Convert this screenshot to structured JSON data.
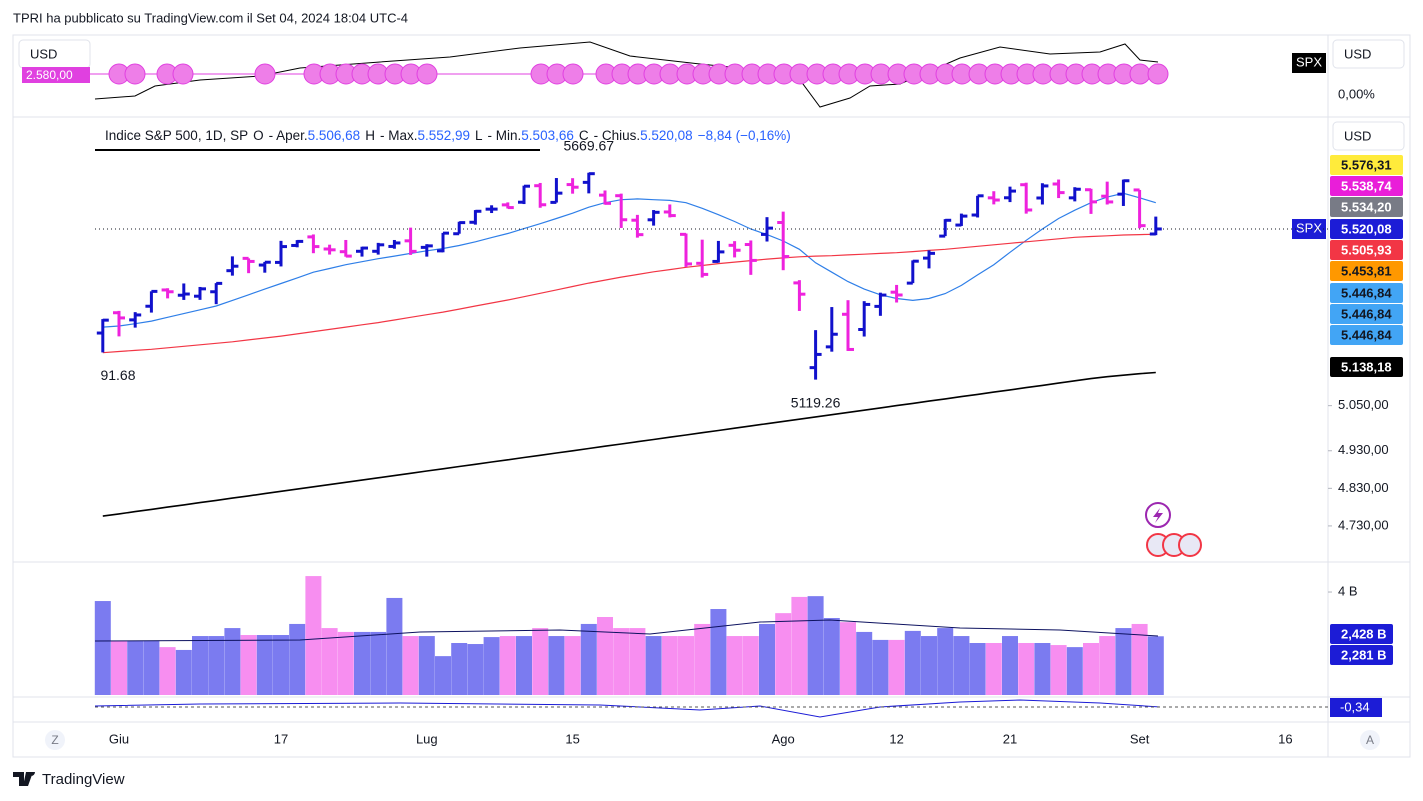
{
  "header": {
    "title": "TPRI ha pubblicato su TradingView.com il Set 04, 2024 18:04 UTC-4"
  },
  "currency": "USD",
  "symbol": "SPX",
  "top_pane": {
    "label": "2.580,00",
    "percent": "0,00%"
  },
  "legend": {
    "name": "Indice S&P 500, 1D, SP",
    "o": "O",
    "o_text": "- Aper.",
    "o_value": "5.506,68",
    "h": "H",
    "h_text": "- Max.",
    "h_value": "5.552,99",
    "l": "L",
    "l_text": "- Min.",
    "l_value": "5.503,66",
    "c": "C",
    "c_text": "- Chius.",
    "c_value": "5.520,08",
    "change": "−8,84 (−0,16%)"
  },
  "chart_data": {
    "type": "ohlc",
    "annotations": [
      {
        "text": "5669.67",
        "at": 30
      },
      {
        "text": "5119.26",
        "at": 44
      },
      {
        "text": "91.68",
        "at": 0
      }
    ],
    "categories": [
      null,
      "Giu",
      null,
      null,
      null,
      null,
      null,
      null,
      null,
      null,
      null,
      "17",
      null,
      null,
      null,
      null,
      null,
      null,
      null,
      null,
      "Lug",
      null,
      null,
      null,
      null,
      null,
      null,
      null,
      null,
      "15",
      null,
      null,
      null,
      null,
      null,
      null,
      null,
      null,
      null,
      null,
      null,
      null,
      "Ago",
      null,
      null,
      null,
      null,
      null,
      null,
      "12",
      null,
      null,
      null,
      null,
      null,
      null,
      "21",
      null,
      null,
      null,
      null,
      null,
      null,
      null,
      "Set",
      null,
      null,
      null,
      null,
      null,
      null,
      null,
      null,
      "16"
    ],
    "ohlc": {
      "open": [
        5243.2,
        5297.2,
        5278.2,
        5314.5,
        5357.8,
        5343.8,
        5341.2,
        5353.0,
        5409.1,
        5441.9,
        5424.1,
        5431.1,
        5476.2,
        5499.0,
        5466.8,
        5459.6,
        5460.7,
        5460.7,
        5473.6,
        5488.5,
        5471.1,
        5461.8,
        5507.4,
        5537.9,
        5572.8,
        5584.2,
        5591.3,
        5635.2,
        5590.8,
        5638.2,
        5644.1,
        5610.1,
        5608.6,
        5543.4,
        5544.5,
        5565.3,
        5505.8,
        5428.7,
        5433.7,
        5476.6,
        5478.7,
        5505.6,
        5537.3,
        5376.6,
        5151.1,
        5206.4,
        5293.1,
        5252.6,
        5314.1,
        5351.9,
        5376.0,
        5442.6,
        5501.1,
        5530.5,
        5557.2,
        5602.9,
        5603.1,
        5637.8,
        5602.5,
        5639.7,
        5602.9,
        5624.5,
        5607.3,
        5612.7,
        5623.9,
        5506.68,
        null,
        null,
        null,
        null,
        null,
        null,
        null,
        null
      ],
      "high": [
        5280.3,
        5302.1,
        5298.8,
        5354.2,
        5362.4,
        5375.1,
        5365.8,
        5376.0,
        5447.2,
        5441.9,
        5432.4,
        5488.5,
        5490.4,
        5505.5,
        5478.3,
        5490.8,
        5472.9,
        5483.1,
        5490.8,
        5523.6,
        5479.6,
        5509.7,
        5539.3,
        5570.3,
        5583.1,
        5590.8,
        5635.4,
        5642.5,
        5655.6,
        5655.2,
        5669.67,
        5622.5,
        5614.1,
        5557.6,
        5570.4,
        5585.3,
        5508.0,
        5491.6,
        5488.3,
        5487.7,
        5489.5,
        5551.5,
        5566.2,
        5383.9,
        5250.9,
        5312.3,
        5330.6,
        5328.0,
        5350.6,
        5371.2,
        5436.5,
        5463.2,
        5546.2,
        5561.0,
        5608.3,
        5620.5,
        5632.7,
        5643.2,
        5641.8,
        5651.6,
        5631.2,
        5627.0,
        5646.0,
        5651.4,
        5623.9,
        5552.99,
        null,
        null,
        null,
        null,
        null,
        null,
        null,
        null
      ],
      "low": [
        5191.68,
        5234.3,
        5257.6,
        5297.6,
        5335.4,
        5331.3,
        5331.5,
        5320.0,
        5395.9,
        5402.5,
        5403.8,
        5420.4,
        5471.3,
        5455.6,
        5452.0,
        5446.3,
        5446.6,
        5451.9,
        5467.5,
        5451.1,
        5446.5,
        5458.0,
        5507.4,
        5531.6,
        5562.5,
        5574.6,
        5586.4,
        5576.5,
        5590.4,
        5614.0,
        5614.8,
        5584.8,
        5522.8,
        5497.0,
        5529.0,
        5550.9,
        5419.0,
        5390.9,
        5430.7,
        5444.4,
        5398.0,
        5486.7,
        5410.4,
        5302.0,
        5119.26,
        5193.6,
        5195.5,
        5233.9,
        5289.0,
        5324.4,
        5376.0,
        5415.2,
        5501.1,
        5528.1,
        5550.7,
        5585.5,
        5591.6,
        5560.9,
        5585.2,
        5602.3,
        5593.5,
        5560.2,
        5585.2,
        5581.3,
        5522.0,
        5503.66,
        null,
        null,
        null,
        null,
        null,
        null,
        null,
        null
      ],
      "close": [
        5277.5,
        5283.4,
        5291.3,
        5354.0,
        5353.0,
        5347.0,
        5360.8,
        5375.3,
        5421.0,
        5433.7,
        5431.6,
        5473.2,
        5487.0,
        5473.2,
        5464.6,
        5447.9,
        5469.3,
        5477.9,
        5482.9,
        5460.5,
        5475.1,
        5509.0,
        5537.0,
        5567.2,
        5572.9,
        5577.0,
        5633.9,
        5584.5,
        5615.4,
        5631.2,
        5667.2,
        5588.3,
        5544.6,
        5505.0,
        5564.4,
        5555.7,
        5427.1,
        5399.2,
        5459.1,
        5463.5,
        5436.4,
        5522.3,
        5446.7,
        5346.6,
        5186.3,
        5240.0,
        5199.5,
        5319.3,
        5344.2,
        5344.4,
        5434.4,
        5455.2,
        5543.2,
        5554.3,
        5608.3,
        5597.1,
        5620.9,
        5570.6,
        5634.6,
        5616.8,
        5625.8,
        5592.2,
        5592.0,
        5648.4,
        5528.9,
        5520.08,
        null,
        null,
        null,
        null,
        null,
        null,
        null,
        null
      ]
    },
    "up_color": "#1111cc",
    "down_color": "#ee22dd",
    "lines": [
      {
        "color": "#2f7fe8",
        "values": [
          5259,
          5262,
          5268,
          5275,
          5285,
          5295,
          5305,
          5315,
          5330,
          5345,
          5360,
          5375,
          5390,
          5405,
          5415,
          5425,
          5433,
          5441,
          5448,
          5455,
          5462,
          5468,
          5476,
          5486,
          5497,
          5508,
          5521,
          5534,
          5548,
          5562,
          5578,
          5590,
          5598,
          5600,
          5598,
          5596,
          5590,
          5575,
          5558,
          5540,
          5520,
          5505,
          5488,
          5466,
          5430,
          5405,
          5380,
          5360,
          5345,
          5335,
          5330,
          5335,
          5348,
          5370,
          5398,
          5425,
          5458,
          5490,
          5520,
          5548,
          5570,
          5590,
          5605,
          5615,
          5603,
          5590,
          null,
          null,
          null,
          null,
          null,
          null,
          null,
          null
        ]
      },
      {
        "color": "#f23645",
        "values": [
          5191,
          5194,
          5197,
          5200,
          5204,
          5208,
          5212,
          5216,
          5220,
          5225,
          5230,
          5235,
          5241,
          5247,
          5253,
          5259,
          5265,
          5271,
          5278,
          5285,
          5292,
          5299,
          5307,
          5315,
          5323,
          5331,
          5340,
          5349,
          5358,
          5367,
          5376,
          5384,
          5392,
          5399,
          5406,
          5412,
          5418,
          5423,
          5428,
          5432,
          5436,
          5440,
          5443,
          5446,
          5448,
          5449,
          5451,
          5453,
          5455,
          5457,
          5460,
          5463,
          5466,
          5470,
          5474,
          5478,
          5482,
          5486,
          5490,
          5494,
          5498,
          5500,
          5502,
          5504,
          5505,
          5505.93,
          null,
          null,
          null,
          null,
          null,
          null,
          null,
          null
        ]
      },
      {
        "color": "#000000",
        "values": [
          4756,
          4762,
          4768,
          4774,
          4780,
          4786,
          4792,
          4798,
          4804,
          4810,
          4816,
          4822,
          4828,
          4834,
          4840,
          4846,
          4852,
          4858,
          4864,
          4870,
          4876,
          4882,
          4888,
          4894,
          4900,
          4906,
          4912,
          4918,
          4924,
          4930,
          4936,
          4942,
          4948,
          4954,
          4960,
          4966,
          4972,
          4978,
          4984,
          4990,
          4996,
          5002,
          5008,
          5014,
          5020,
          5026,
          5032,
          5038,
          5044,
          5050,
          5056,
          5062,
          5068,
          5074,
          5080,
          5086,
          5092,
          5098,
          5104,
          5110,
          5116,
          5122,
          5127,
          5131,
          5135,
          5138.18,
          null,
          null,
          null,
          null,
          null,
          null,
          null,
          null
        ]
      }
    ],
    "ylim": [
      4634,
      5818
    ],
    "yticks": [
      {
        "value": 4730,
        "label": "4.730,00"
      },
      {
        "value": 4830,
        "label": "4.830,00"
      },
      {
        "value": 4930,
        "label": "4.930,00"
      },
      {
        "value": 5050,
        "label": "5.050,00"
      }
    ],
    "price_labels": [
      {
        "label": "5.576,31",
        "color": "#ffeb3b",
        "text_color": "#131722"
      },
      {
        "label": "5.538,74",
        "color": "#e91ed9",
        "text_color": "#ffffff"
      },
      {
        "label": "5.534,20",
        "color": "#787b86",
        "text_color": "#ffffff"
      },
      {
        "label": "5.520,08",
        "color": "#1c1cd6",
        "text_color": "#ffffff"
      },
      {
        "label": "5.505,93",
        "color": "#f23645",
        "text_color": "#ffffff"
      },
      {
        "label": "5.453,81",
        "color": "#ff9800",
        "text_color": "#131722"
      },
      {
        "label": "5.446,84",
        "color": "#42a5f5",
        "text_color": "#131722"
      },
      {
        "label": "5.446,84",
        "color": "#42a5f5",
        "text_color": "#131722"
      },
      {
        "label": "5.446,84",
        "color": "#42a5f5",
        "text_color": "#131722"
      },
      {
        "label": "5.138,18",
        "color": "#000000",
        "text_color": "#ffffff"
      }
    ],
    "volume": {
      "values": [
        3.65,
        2.1,
        2.1,
        2.1,
        1.86,
        1.75,
        2.29,
        2.29,
        2.6,
        2.33,
        2.33,
        2.33,
        2.76,
        4.62,
        2.6,
        2.45,
        2.45,
        2.45,
        3.77,
        2.29,
        2.29,
        1.51,
        2.02,
        1.98,
        2.25,
        2.29,
        2.29,
        2.6,
        2.29,
        2.29,
        2.76,
        3.03,
        2.6,
        2.6,
        2.29,
        2.29,
        2.29,
        2.76,
        3.34,
        2.29,
        2.29,
        2.76,
        3.18,
        3.81,
        3.84,
        2.99,
        2.83,
        2.45,
        2.14,
        2.14,
        2.49,
        2.29,
        2.6,
        2.29,
        2.02,
        2.02,
        2.29,
        2.02,
        2.02,
        1.94,
        1.86,
        2.02,
        2.29,
        2.6,
        2.76,
        2.281,
        null,
        null,
        null,
        null,
        null,
        null,
        null,
        null
      ],
      "up_color": "#7b7bf0",
      "down_color": "#f78ef0",
      "ylim": [
        0,
        5.05
      ],
      "yticks": [
        {
          "value": 4,
          "label": "4 B"
        }
      ],
      "labels": [
        "2,428 B",
        "2,281 B"
      ]
    },
    "oscillator_label": "-0,34"
  },
  "axis_buttons": [
    "Z",
    "A"
  ],
  "footer": {
    "brand": "TradingView"
  }
}
